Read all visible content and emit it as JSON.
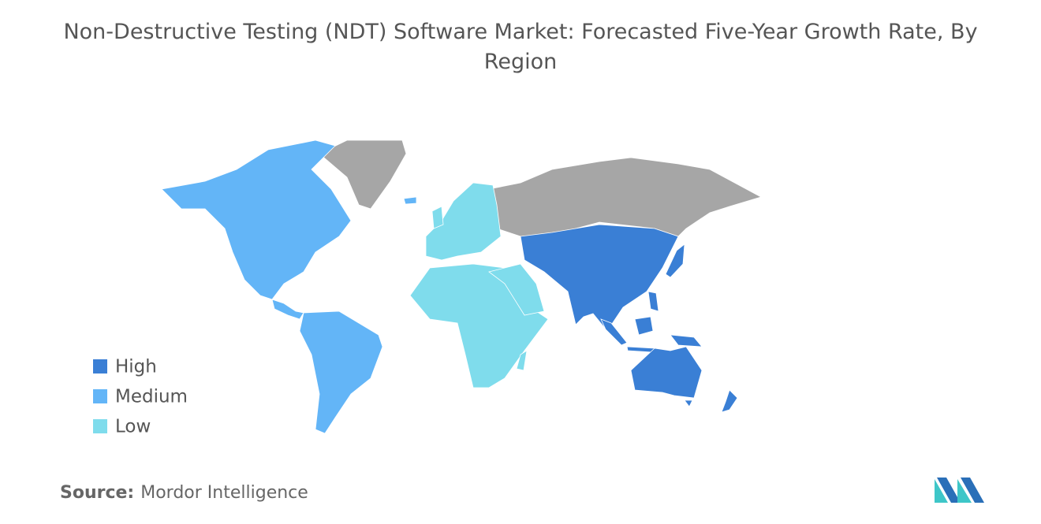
{
  "title": "Non-Destructive Testing (NDT) Software Market: Forecasted Five-Year Growth Rate, By Region",
  "legend": [
    {
      "label": "High",
      "color": "#3a7fd5"
    },
    {
      "label": "Medium",
      "color": "#63b5f7"
    },
    {
      "label": "Low",
      "color": "#7fdcec"
    }
  ],
  "source": {
    "label": "Source:",
    "text": "Mordor Intelligence"
  }
}
